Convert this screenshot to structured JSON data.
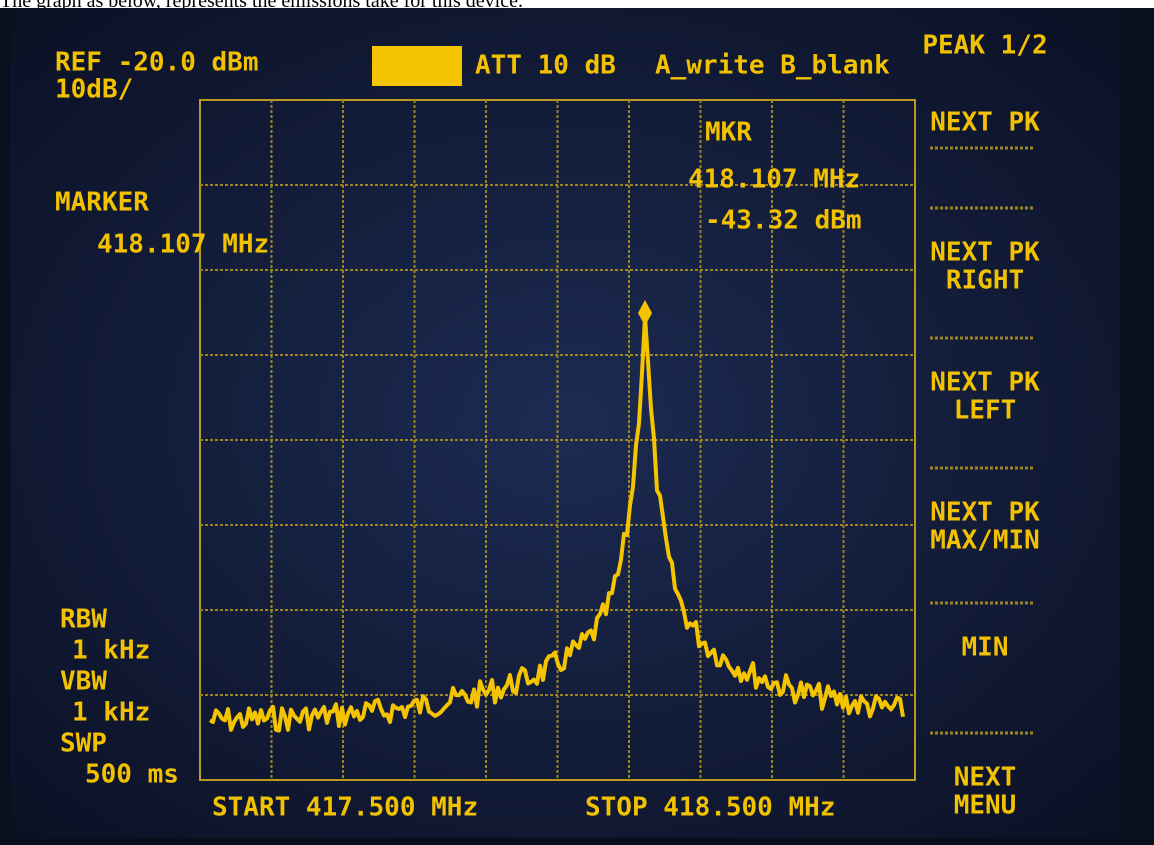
{
  "caption": "The graph as below, represents the emissions take for this device.",
  "screen": {
    "ref": "REF -20.0 dBm",
    "scale": "10dB/",
    "att": "ATT 10 dB",
    "trace_mode": "A_write B_blank",
    "marker_readout": {
      "label": "MKR",
      "frequency": "418.107 MHz",
      "level": "-43.32 dBm"
    },
    "marker": {
      "label": "MARKER",
      "frequency": "418.107 MHz"
    },
    "settings": [
      "RBW",
      "1 kHz",
      "VBW",
      "1 kHz",
      "SWP",
      "500 ms"
    ],
    "start": "START 417.500 MHz",
    "stop": "STOP 418.500 MHz"
  },
  "softkeys": [
    [
      "PEAK 1/2"
    ],
    [
      "NEXT PK"
    ],
    [
      "NEXT PK",
      "RIGHT"
    ],
    [
      "NEXT PK",
      "LEFT"
    ],
    [
      "NEXT PK",
      "MAX/MIN"
    ],
    [
      "MIN"
    ],
    [
      "NEXT",
      "MENU"
    ]
  ]
}
